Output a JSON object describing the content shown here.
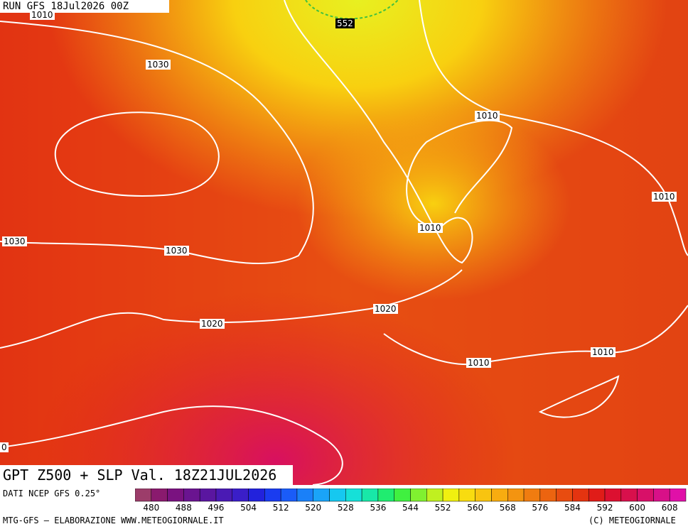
{
  "header": {
    "run": "RUN GFS 18Jul2026 00Z"
  },
  "map": {
    "title": "GPT Z500 + SLP Val. 18Z21JUL2026",
    "contour_labels": [
      "1010",
      "552",
      "1030",
      "1010",
      "1010",
      "1010",
      "1030",
      "1030",
      "1020",
      "1020",
      "1010",
      "1010",
      "0"
    ]
  },
  "legend": {
    "source": "DATI NCEP GFS 0.25°",
    "ticks": [
      480,
      488,
      496,
      504,
      512,
      520,
      528,
      536,
      544,
      552,
      560,
      568,
      576,
      584,
      592,
      600,
      608
    ],
    "colors": [
      "#9c3d6a",
      "#8a1a6e",
      "#7a1280",
      "#6a1490",
      "#5a16a0",
      "#4a1ab4",
      "#3a1ec8",
      "#2222dc",
      "#1a3cf0",
      "#1a5cf8",
      "#1a80f8",
      "#1aa4f8",
      "#16c8f0",
      "#16e0d8",
      "#18e8a8",
      "#20ec70",
      "#40f040",
      "#80f030",
      "#c0f020",
      "#f0f010",
      "#f8dc10",
      "#f8c410",
      "#f8ac10",
      "#f49410",
      "#f07c10",
      "#ec6410",
      "#e84c10",
      "#e43410",
      "#e01c18",
      "#dc1030",
      "#d8104c",
      "#d81068",
      "#d81088",
      "#e010a8"
    ],
    "footer_left": "MTG-GFS — ELABORAZIONE WWW.METEOGIORNALE.IT",
    "footer_right": "(C) METEOGIORNALE"
  }
}
